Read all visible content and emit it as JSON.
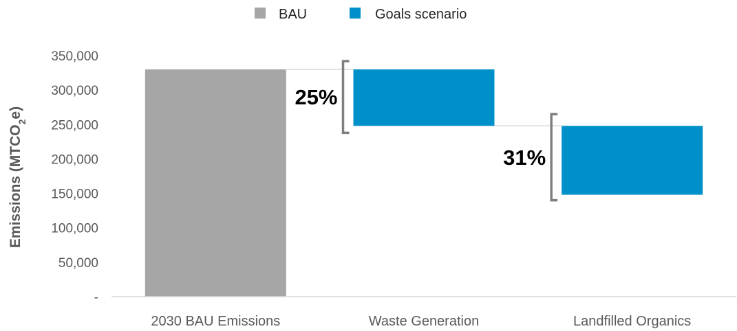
{
  "chart_data": {
    "type": "bar",
    "subtype": "waterfall",
    "categories": [
      "2030 BAU Emissions",
      "Waste Generation",
      "Landfilled Organics"
    ],
    "series": [
      {
        "name": "BAU",
        "color": "#a6a6a6"
      },
      {
        "name": "Goals scenario",
        "color": "#0090c9"
      }
    ],
    "bars": [
      {
        "category": "2030 BAU Emissions",
        "series": "BAU",
        "start": 0,
        "end": 330000
      },
      {
        "category": "Waste Generation",
        "series": "Goals scenario",
        "start": 248000,
        "end": 330000
      },
      {
        "category": "Landfilled Organics",
        "series": "Goals scenario",
        "start": 148000,
        "end": 248000
      }
    ],
    "annotations": [
      {
        "label": "25%",
        "category": "Waste Generation",
        "from": 238000,
        "to": 342000
      },
      {
        "label": "31%",
        "category": "Landfilled Organics",
        "from": 140000,
        "to": 265000
      }
    ],
    "ylabel_main": "Emissions (MTCO",
    "ylabel_sub": "2",
    "ylabel_end": "e)",
    "ylim": [
      0,
      350000
    ],
    "yticks": [
      {
        "value": 0,
        "label": "-"
      },
      {
        "value": 50000,
        "label": "50,000"
      },
      {
        "value": 100000,
        "label": "100,000"
      },
      {
        "value": 150000,
        "label": "150,000"
      },
      {
        "value": 200000,
        "label": "200,000"
      },
      {
        "value": 250000,
        "label": "250,000"
      },
      {
        "value": 300000,
        "label": "300,000"
      },
      {
        "value": 350000,
        "label": "350,000"
      }
    ],
    "legend_position": "top-center",
    "grid": false,
    "connector_color": "#d9d9d9",
    "bracket_color": "#7f7f7f"
  }
}
